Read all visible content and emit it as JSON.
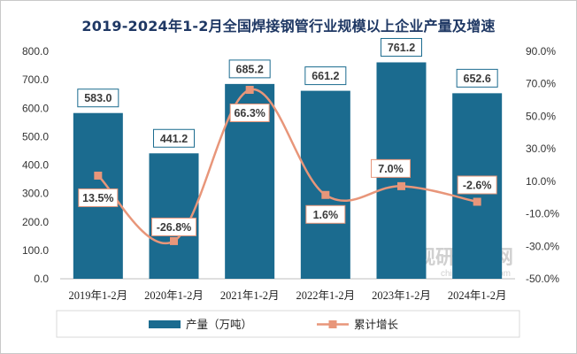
{
  "chart_data": {
    "type": "bar",
    "title": "2019-2024年1-2月全国焊接钢管行业规模以上企业产量及增速",
    "categories": [
      "2019年1-2月",
      "2020年1-2月",
      "2021年1-2月",
      "2022年1-2月",
      "2023年1-2月",
      "2024年1-2月"
    ],
    "series": [
      {
        "name": "产量（万吨）",
        "type": "bar",
        "axis": "left",
        "color": "#1b6b8f",
        "values": [
          583.0,
          441.2,
          685.2,
          661.2,
          761.2,
          652.6
        ],
        "labels": [
          "583.0",
          "441.2",
          "685.2",
          "661.2",
          "761.2",
          "652.6"
        ]
      },
      {
        "name": "累计增长",
        "type": "line",
        "axis": "right",
        "color": "#e8967a",
        "values": [
          13.5,
          -26.8,
          66.3,
          1.6,
          7.0,
          -2.6
        ],
        "labels": [
          "13.5%",
          "-26.8%",
          "66.3%",
          "1.6%",
          "7.0%",
          "-2.6%"
        ]
      }
    ],
    "y_left": {
      "range": [
        0,
        800
      ],
      "ticks": [
        "0.0",
        "100.0",
        "200.0",
        "300.0",
        "400.0",
        "500.0",
        "600.0",
        "700.0",
        "800.0"
      ]
    },
    "y_right": {
      "range": [
        -50,
        90
      ],
      "ticks": [
        "-50.0%",
        "-30.0%",
        "-10.0%",
        "10.0%",
        "30.0%",
        "50.0%",
        "70.0%",
        "90.0%"
      ]
    },
    "grid": false,
    "legend_position": "bottom"
  },
  "watermark": {
    "text": "观研报告网",
    "url_text": "chinabaogao.com"
  }
}
